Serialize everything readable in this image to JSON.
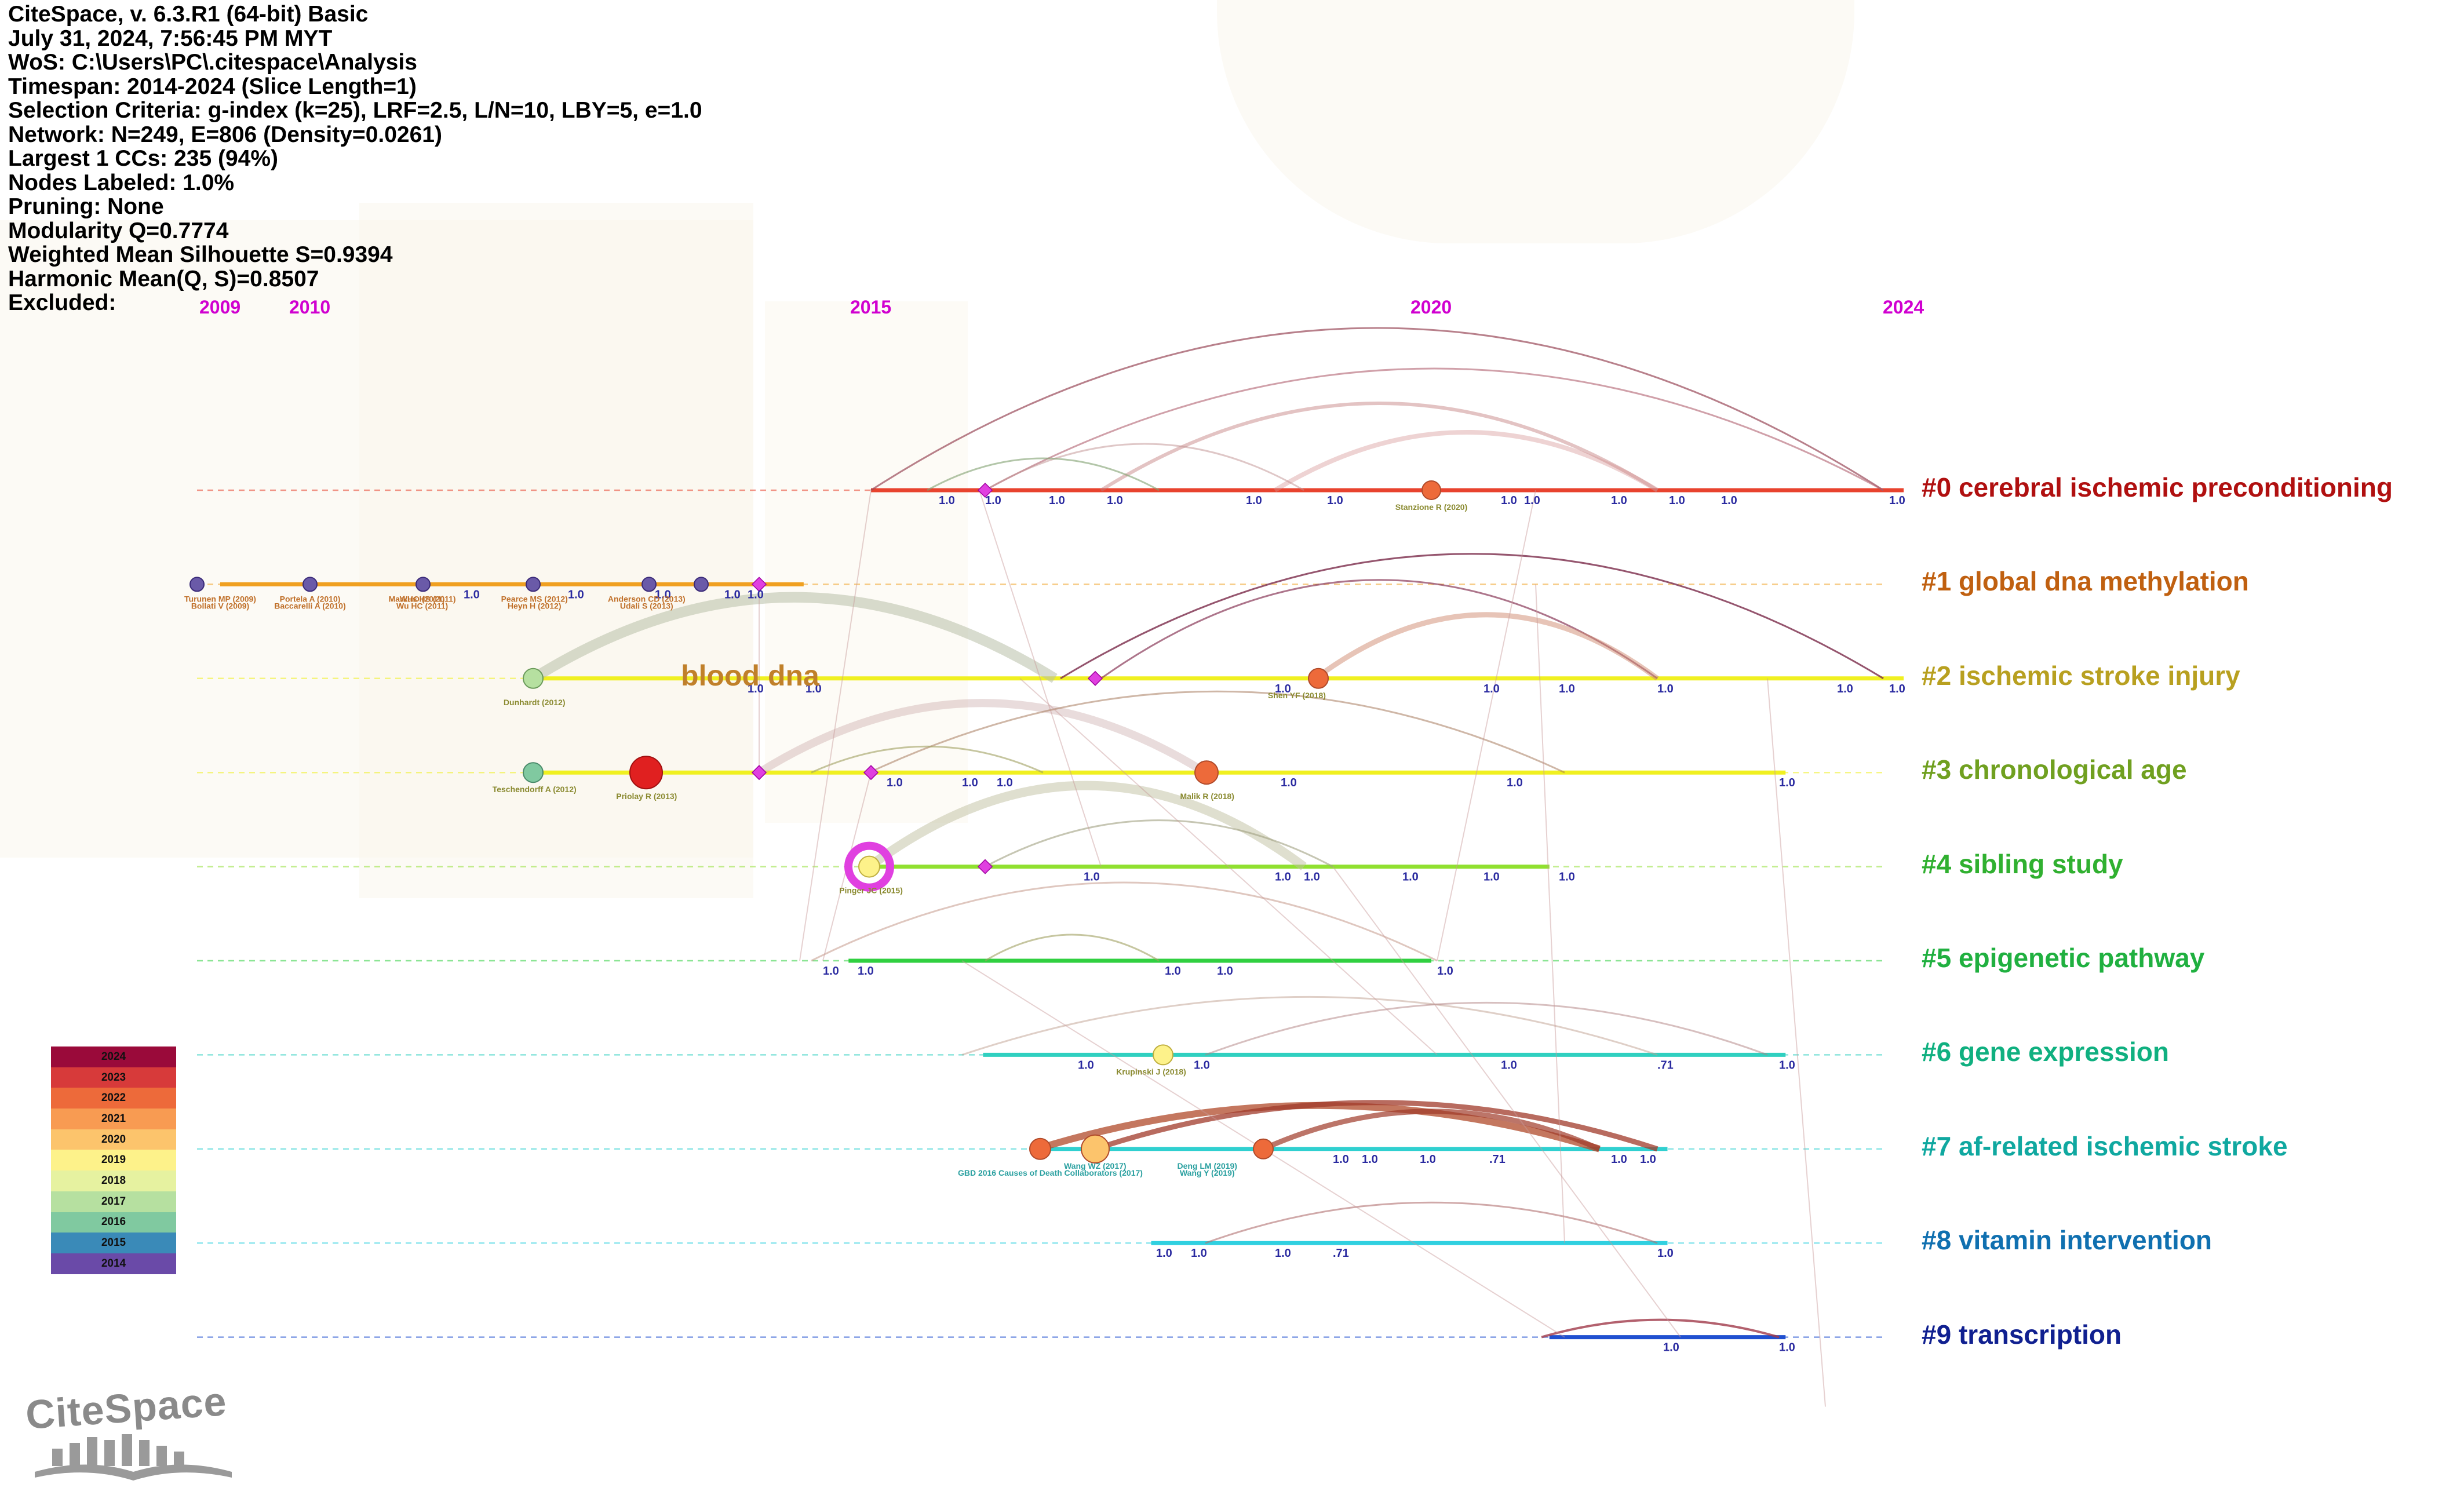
{
  "info_lines": [
    "CiteSpace, v. 6.3.R1 (64-bit) Basic",
    "July 31, 2024, 7:56:45 PM MYT",
    "WoS: C:\\Users\\PC\\.citespace\\Analysis",
    "Timespan: 2014-2024 (Slice Length=1)",
    "Selection Criteria: g-index (k=25), LRF=2.5, L/N=10, LBY=5, e=1.0",
    "Network: N=249, E=806 (Density=0.0261)",
    "Largest 1 CCs: 235 (94%)",
    "Nodes Labeled: 1.0%",
    "Pruning: None",
    "Modularity Q=0.7774",
    "Weighted Mean Silhouette S=0.9394",
    "Harmonic Mean(Q, S)=0.8507",
    "Excluded:"
  ],
  "years": [
    {
      "label": "2009",
      "value": 2009
    },
    {
      "label": "2010",
      "value": 2010
    },
    {
      "label": "2015",
      "value": 2015
    },
    {
      "label": "2020",
      "value": 2020
    },
    {
      "label": "2024",
      "value": 2024
    }
  ],
  "clusters": [
    {
      "label": "#0 cerebral ischemic preconditioning",
      "color": "#b01010",
      "line": "#e8432e",
      "start": 2015,
      "end": 2024
    },
    {
      "label": "#1 global dna methylation",
      "color": "#c06010",
      "line": "#f0a020",
      "start": 2009,
      "end": 2014.4
    },
    {
      "label": "#2 ischemic stroke injury",
      "color": "#b8a020",
      "line": "#f0f020",
      "start": 2012,
      "end": 2024
    },
    {
      "label": "#3 chronological age",
      "color": "#70a020",
      "line": "#f0f020",
      "start": 2012,
      "end": 2023
    },
    {
      "label": "#4 sibling study",
      "color": "#30b030",
      "line": "#90e030",
      "start": 2015,
      "end": 2021
    },
    {
      "label": "#5 epigenetic pathway",
      "color": "#20b040",
      "line": "#30d040",
      "start": 2014.8,
      "end": 2020
    },
    {
      "label": "#6 gene expression",
      "color": "#10b080",
      "line": "#30d0c0",
      "start": 2016,
      "end": 2023
    },
    {
      "label": "#7 af-related ischemic stroke",
      "color": "#10a8a0",
      "line": "#30d0d0",
      "start": 2016.5,
      "end": 2022
    },
    {
      "label": "#8 vitamin intervention",
      "color": "#1070b0",
      "line": "#30d0e0",
      "start": 2017.5,
      "end": 2022
    },
    {
      "label": "#9 transcription",
      "color": "#102090",
      "line": "#2050d0",
      "start": 2021,
      "end": 2023
    }
  ],
  "node_labels": [
    {
      "text": "Turunen MP (2009)",
      "cluster": 1,
      "year": 2009
    },
    {
      "text": "Bollati V (2009)",
      "cluster": 1,
      "year": 2009
    },
    {
      "text": "Portela A (2010)",
      "cluster": 1,
      "year": 2010
    },
    {
      "text": "Baccarelli A (2010)",
      "cluster": 1,
      "year": 2010
    },
    {
      "text": "WHO (2011)",
      "cluster": 1,
      "year": 2011
    },
    {
      "text": "Wu HC (2011)",
      "cluster": 1,
      "year": 2011
    },
    {
      "text": "Markus HS (2011)",
      "cluster": 1,
      "year": 2011
    },
    {
      "text": "Heyn H (2012)",
      "cluster": 1,
      "year": 2012
    },
    {
      "text": "Pearce MS (2012)",
      "cluster": 1,
      "year": 2012
    },
    {
      "text": "Udali S (2013)",
      "cluster": 1,
      "year": 2013
    },
    {
      "text": "Anderson CD (2013)",
      "cluster": 1,
      "year": 2013
    },
    {
      "text": "Dunhardt (2012)",
      "cluster": 2,
      "year": 2012
    },
    {
      "text": "Teschendorff A (2012)",
      "cluster": 3,
      "year": 2012
    },
    {
      "text": "Priolay R (2013)",
      "cluster": 3,
      "year": 2013
    },
    {
      "text": "Shen YF (2018)",
      "cluster": 2,
      "year": 2018.8
    },
    {
      "text": "Malik R (2018)",
      "cluster": 3,
      "year": 2018
    },
    {
      "text": "Stanzione R (2020)",
      "cluster": 0,
      "year": 2020
    },
    {
      "text": "Pinger JC (2015)",
      "cluster": 4,
      "year": 2015
    },
    {
      "text": "Krupinski J (2018)",
      "cluster": 6,
      "year": 2017.5
    },
    {
      "text": "GBD 2016 Causes of Death Collaborators (2017)",
      "cluster": 7,
      "year": 2016.6
    },
    {
      "text": "Wang WZ (2017)",
      "cluster": 7,
      "year": 2017
    },
    {
      "text": "Wang Y (2019)",
      "cluster": 7,
      "year": 2018
    },
    {
      "text": "Deng LM (2019)",
      "cluster": 7,
      "year": 2018
    }
  ],
  "big_label": {
    "text": "blood dna",
    "color": "#c0802a"
  },
  "legend": [
    {
      "year": "2024",
      "color": "#9a0a3a"
    },
    {
      "year": "2023",
      "color": "#d73a3a"
    },
    {
      "year": "2022",
      "color": "#ed6a3a"
    },
    {
      "year": "2021",
      "color": "#f89b52"
    },
    {
      "year": "2020",
      "color": "#fcc46c"
    },
    {
      "year": "2019",
      "color": "#fdf28a"
    },
    {
      "year": "2018",
      "color": "#e6f2a0"
    },
    {
      "year": "2017",
      "color": "#b6e0a0"
    },
    {
      "year": "2016",
      "color": "#80c9a0"
    },
    {
      "year": "2015",
      "color": "#3a8ab8"
    },
    {
      "year": "2014",
      "color": "#6a4aa8"
    }
  ],
  "logo": {
    "text": "CiteSpace"
  },
  "edge_value_labels": [
    "1.0",
    ".71",
    ".0",
    "1"
  ]
}
